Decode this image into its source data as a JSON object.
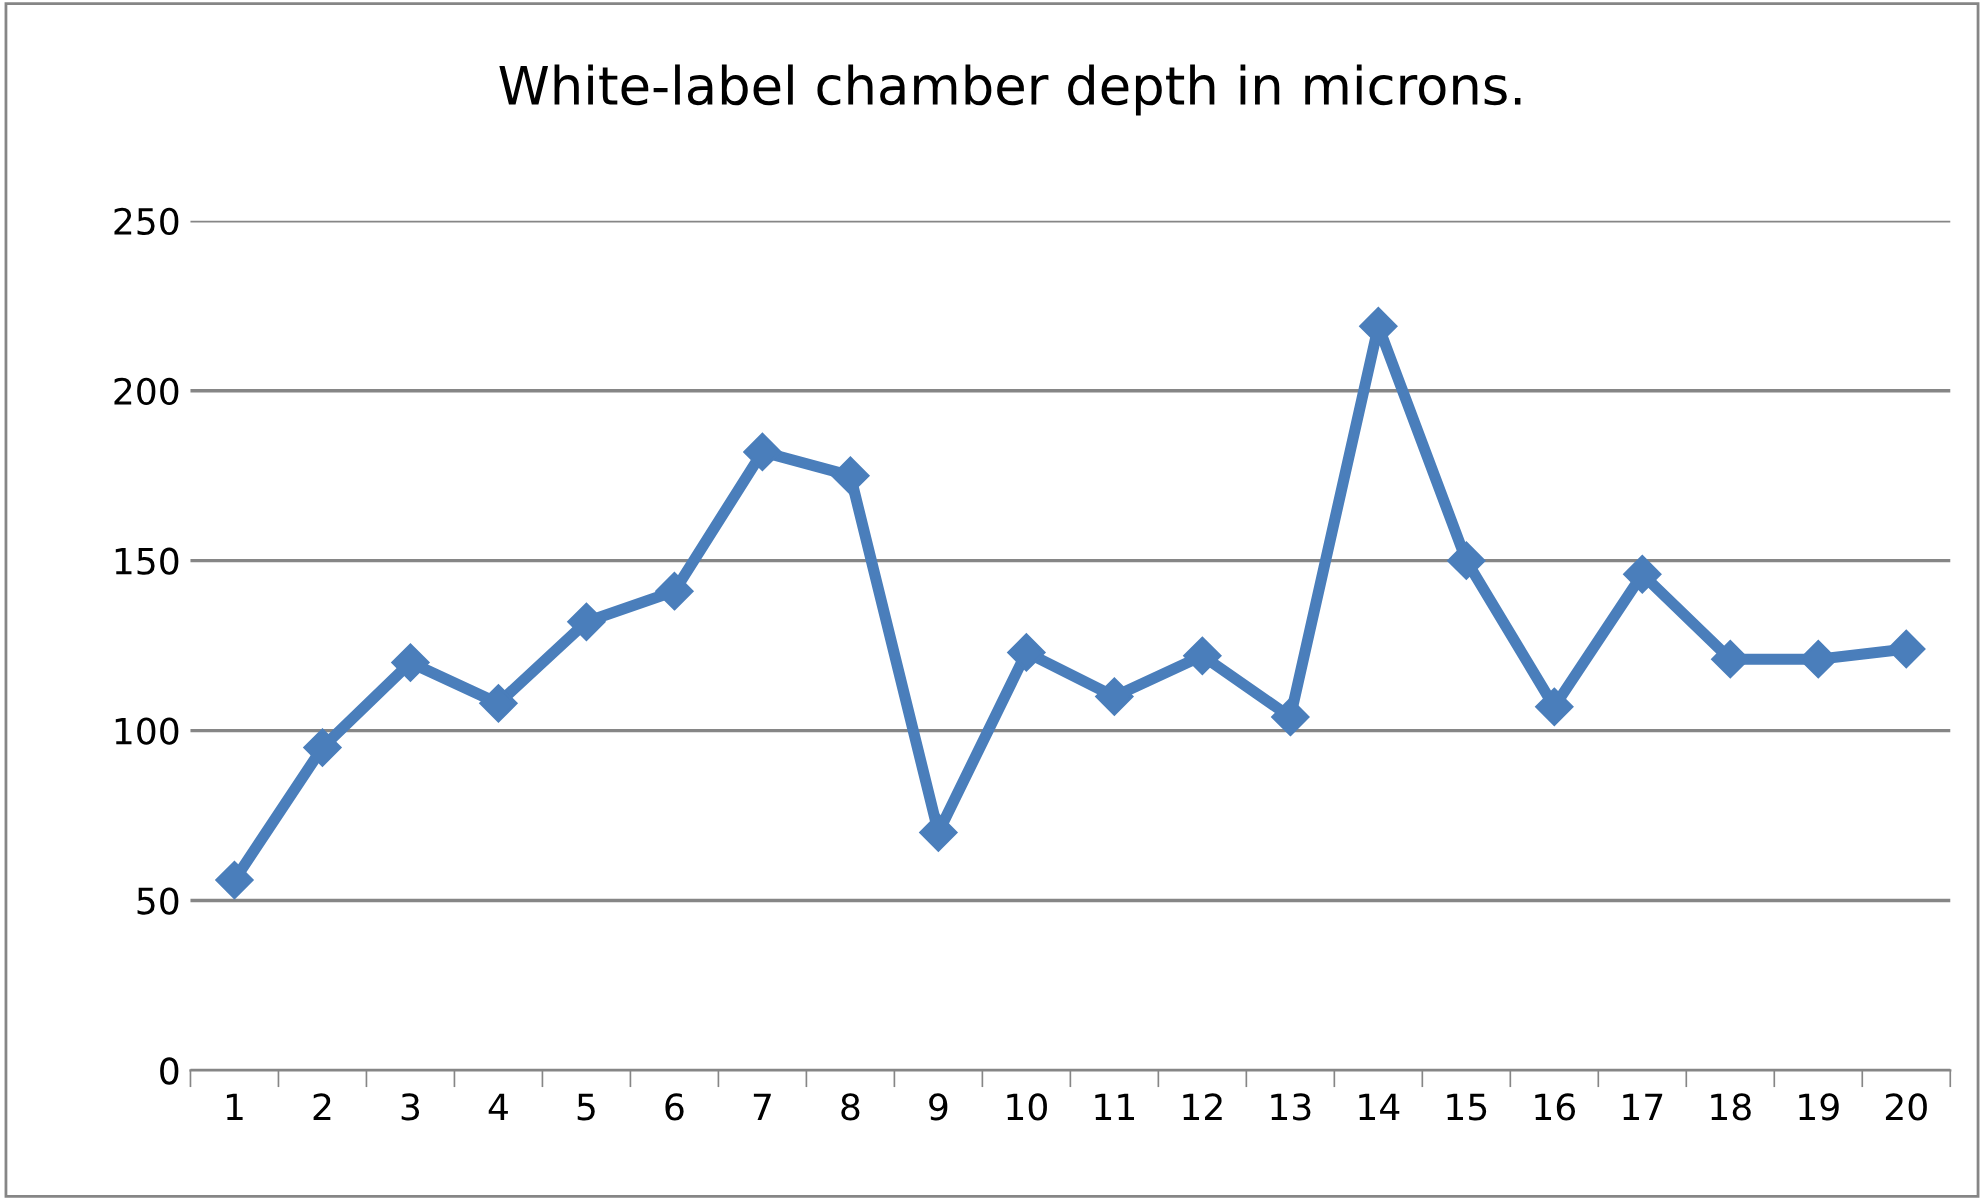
{
  "chart_data": {
    "type": "line",
    "title": "White-label chamber depth in microns.",
    "categories": [
      "1",
      "2",
      "3",
      "4",
      "5",
      "6",
      "7",
      "8",
      "9",
      "10",
      "11",
      "12",
      "13",
      "14",
      "15",
      "16",
      "17",
      "18",
      "19",
      "20"
    ],
    "series": [
      {
        "color": "#4a7ebb",
        "values": [
          56,
          95,
          120,
          108,
          132,
          141,
          182,
          175,
          70,
          123,
          110,
          122,
          104,
          219,
          150,
          107,
          146,
          121,
          121,
          124
        ]
      }
    ],
    "ylim": [
      0,
      250
    ],
    "yticks": [
      0,
      50,
      100,
      150,
      200,
      250
    ],
    "grid": "y",
    "legend": false,
    "marker": "diamond",
    "line_style": "solid"
  }
}
